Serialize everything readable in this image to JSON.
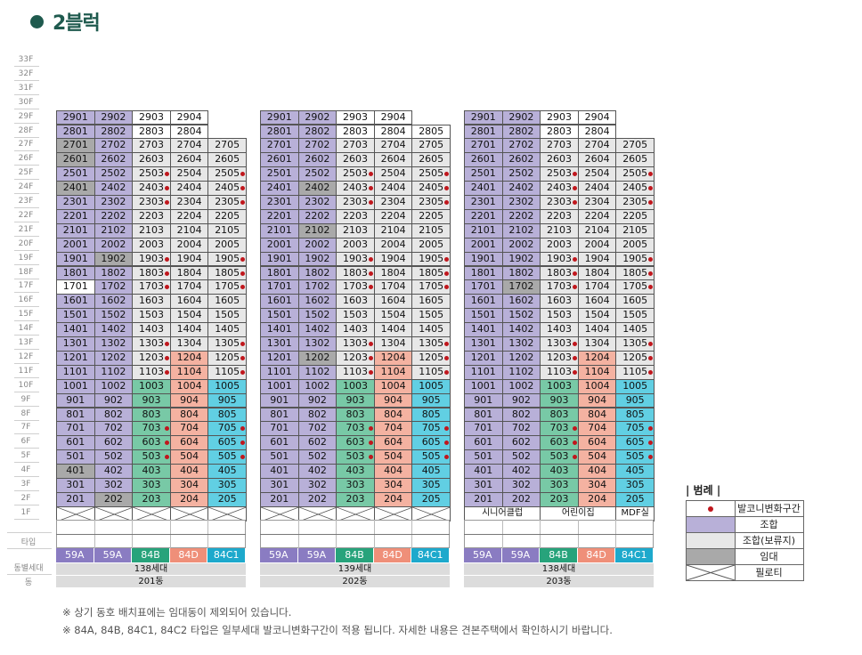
{
  "page_title": "2블럭",
  "floor_labels": [
    "33F",
    "32F",
    "31F",
    "30F",
    "29F",
    "28F",
    "27F",
    "26F",
    "25F",
    "24F",
    "23F",
    "22F",
    "21F",
    "20F",
    "19F",
    "18F",
    "17F",
    "16F",
    "15F",
    "14F",
    "13F",
    "12F",
    "11F",
    "10F",
    "9F",
    "8F",
    "7F",
    "6F",
    "5F",
    "4F",
    "3F",
    "2F",
    "1F"
  ],
  "row_labels": {
    "type": "타입",
    "households": "동별세대",
    "building": "동"
  },
  "colors": {
    "union": "#b8b0d8",
    "union_reserved": "#e7e7e7",
    "rental": "#a9a9a9",
    "type_59A": "#8a7cc2",
    "type_84B": "#27a37b",
    "type_84D": "#ef8f79",
    "type_84C1": "#1da9cc",
    "balcony_dot": "#c0171d"
  },
  "buildings": [
    {
      "name": "201동",
      "households": "138세대",
      "types": [
        "59A",
        "59A",
        "84B",
        "84D",
        "84C1"
      ],
      "facilities": [],
      "special": {
        "2701": "dg",
        "2601": "dg",
        "2401": "dg",
        "1701": "wht",
        "401": "dg",
        "1902": "dg",
        "202": "dg"
      }
    },
    {
      "name": "202동",
      "households": "139세대",
      "types": [
        "59A",
        "59A",
        "84B",
        "84D",
        "84C1"
      ],
      "facilities": [],
      "special": {
        "2402": "dg",
        "2102": "dg",
        "1202": "dg"
      }
    },
    {
      "name": "203동",
      "households": "138세대",
      "types": [
        "59A",
        "59A",
        "84B",
        "84D",
        "84C1"
      ],
      "facilities": [
        "시니어클럽",
        "어린이집",
        "MDF실"
      ],
      "special": {
        "1702": "dg"
      }
    }
  ],
  "legend": {
    "title": "| 범례 |",
    "items": [
      "발코니변화구간",
      "조합",
      "조합(보류지)",
      "임대",
      "필로티"
    ]
  },
  "notes": [
    "※ 상기 동호 배치표에는 임대동이 제외되어 있습니다.",
    "※ 84A, 84B, 84C1, 84C2 타입은 일부세대 발코니변화구간이 적용 됩니다. 자세한 내용은 견본주택에서 확인하시기 바랍니다."
  ]
}
